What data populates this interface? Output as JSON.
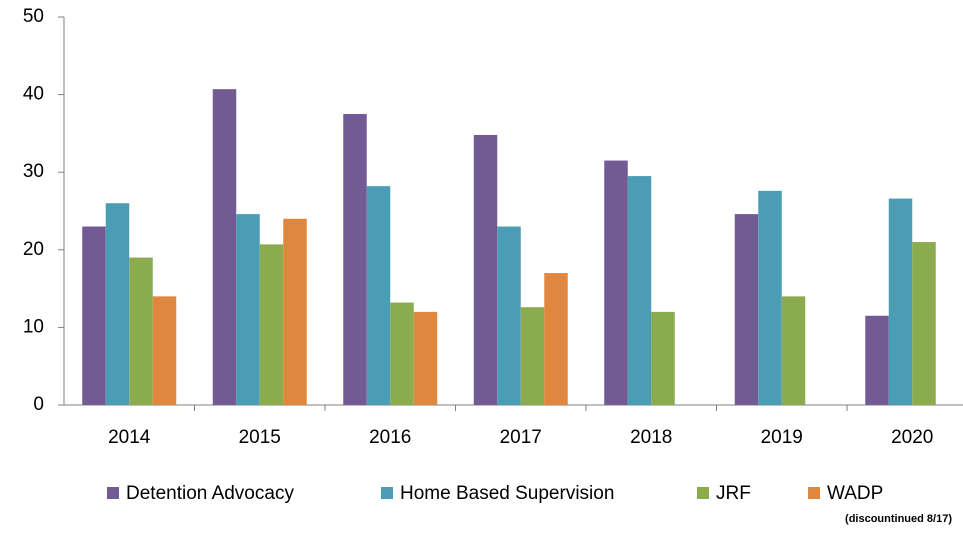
{
  "chart_data": {
    "type": "bar",
    "categories": [
      "2014",
      "2015",
      "2016",
      "2017",
      "2018",
      "2019",
      "2020"
    ],
    "series": [
      {
        "name": "Detention Advocacy",
        "color": "#725a95",
        "values": [
          23,
          40.7,
          37.5,
          34.8,
          31.5,
          24.6,
          11.5
        ]
      },
      {
        "name": "Home Based Supervision",
        "color": "#4a9db5",
        "values": [
          26,
          24.6,
          28.2,
          23,
          29.5,
          27.6,
          26.6
        ]
      },
      {
        "name": "JRF",
        "color": "#8aac4f",
        "values": [
          19,
          20.7,
          13.2,
          12.6,
          12,
          14,
          21
        ]
      },
      {
        "name": "WADP",
        "color": "#e0873f",
        "values": [
          14,
          24,
          12,
          17,
          null,
          null,
          null
        ]
      }
    ],
    "legend_note": "(discountinued 8/17)",
    "ylim": [
      0,
      50
    ],
    "yticks": [
      0,
      10,
      20,
      30,
      40,
      50
    ],
    "grid": false,
    "legend": "bottom"
  }
}
